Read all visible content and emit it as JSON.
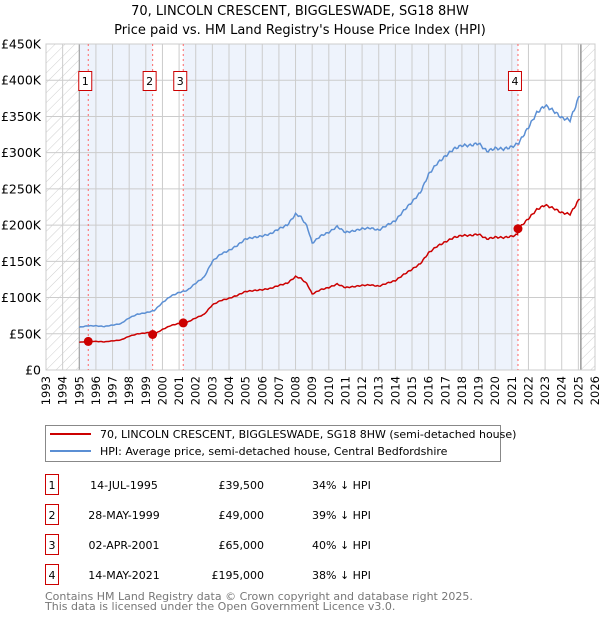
{
  "chart_data": {
    "type": "line",
    "title": "70, LINCOLN CRESCENT, BIGGLESWADE, SG18 8HW",
    "subtitle": "Price paid vs. HM Land Registry's House Price Index (HPI)",
    "xlim": [
      1993,
      2026
    ],
    "ylim": [
      0,
      450000
    ],
    "y_ticks": [
      0,
      50000,
      100000,
      150000,
      200000,
      250000,
      300000,
      350000,
      400000,
      450000
    ],
    "y_tick_labels": [
      "£0",
      "£50K",
      "£100K",
      "£150K",
      "£200K",
      "£250K",
      "£300K",
      "£350K",
      "£400K",
      "£450K"
    ],
    "x_ticks": [
      "1993",
      "1994",
      "1995",
      "1996",
      "1997",
      "1998",
      "1999",
      "2000",
      "2001",
      "2002",
      "2003",
      "2004",
      "2005",
      "2006",
      "2007",
      "2008",
      "2009",
      "2010",
      "2011",
      "2012",
      "2013",
      "2014",
      "2015",
      "2016",
      "2017",
      "2018",
      "2019",
      "2020",
      "2021",
      "2022",
      "2023",
      "2024",
      "2025",
      "2026"
    ],
    "grid": true,
    "data_range": [
      1995.0,
      2025.15
    ],
    "colors": {
      "property": "#cc0000",
      "hpi": "#5b8fd4",
      "band": "#eef3fc",
      "grid": "#cccccc"
    },
    "series": [
      {
        "name": "70, LINCOLN CRESCENT, BIGGLESWADE, SG18 8HW (semi-detached house)",
        "derived_from_hpi": true
      },
      {
        "name": "HPI: Average price, semi-detached house, Central Bedfordshire",
        "x": [
          1995.0,
          1995.5,
          1996.0,
          1996.5,
          1997.0,
          1997.5,
          1998.0,
          1998.5,
          1999.0,
          1999.5,
          2000.0,
          2000.5,
          2001.0,
          2001.5,
          2002.0,
          2002.5,
          2003.0,
          2003.5,
          2004.0,
          2004.5,
          2005.0,
          2005.5,
          2006.0,
          2006.5,
          2007.0,
          2007.5,
          2008.0,
          2008.3,
          2008.7,
          2009.0,
          2009.5,
          2010.0,
          2010.5,
          2011.0,
          2011.5,
          2012.0,
          2012.5,
          2013.0,
          2013.5,
          2014.0,
          2014.5,
          2015.0,
          2015.5,
          2016.0,
          2016.5,
          2017.0,
          2017.5,
          2018.0,
          2018.5,
          2019.0,
          2019.5,
          2020.0,
          2020.5,
          2021.0,
          2021.4,
          2022.0,
          2022.5,
          2023.0,
          2023.5,
          2024.0,
          2024.5,
          2024.8,
          2025.0,
          2025.1
        ],
        "values": [
          59000,
          61000,
          61000,
          60000,
          62000,
          64000,
          72000,
          77000,
          79000,
          82000,
          93000,
          102000,
          107000,
          110000,
          120000,
          128000,
          150000,
          160000,
          165000,
          172000,
          181000,
          183000,
          185000,
          188000,
          195000,
          200000,
          215000,
          212000,
          198000,
          175000,
          185000,
          190000,
          198000,
          190000,
          192000,
          195000,
          196000,
          193000,
          200000,
          206000,
          220000,
          232000,
          245000,
          270000,
          285000,
          295000,
          305000,
          310000,
          310000,
          313000,
          302000,
          306000,
          305000,
          308000,
          313000,
          335000,
          355000,
          365000,
          358000,
          348000,
          345000,
          362000,
          375000,
          381000
        ]
      }
    ],
    "sales": [
      {
        "id": "1",
        "x": 1995.54,
        "date": "14-JUL-1995",
        "price_value": 39500,
        "price": "£39,500",
        "hpi_diff": "34% ↓ HPI"
      },
      {
        "id": "2",
        "x": 1999.41,
        "date": "28-MAY-1999",
        "price_value": 49000,
        "price": "£49,000",
        "hpi_diff": "39% ↓ HPI"
      },
      {
        "id": "3",
        "x": 2001.25,
        "date": "02-APR-2001",
        "price_value": 65000,
        "price": "£65,000",
        "hpi_diff": "40% ↓ HPI"
      },
      {
        "id": "4",
        "x": 2021.37,
        "date": "14-MAY-2021",
        "price_value": 195000,
        "price": "£195,000",
        "hpi_diff": "38% ↓ HPI"
      }
    ]
  },
  "legend": {
    "property_label": "70, LINCOLN CRESCENT, BIGGLESWADE, SG18 8HW (semi-detached house)",
    "hpi_label": "HPI: Average price, semi-detached house, Central Bedfordshire"
  },
  "footer": {
    "line1": "Contains HM Land Registry data © Crown copyright and database right 2025.",
    "line2": "This data is licensed under the Open Government Licence v3.0."
  }
}
